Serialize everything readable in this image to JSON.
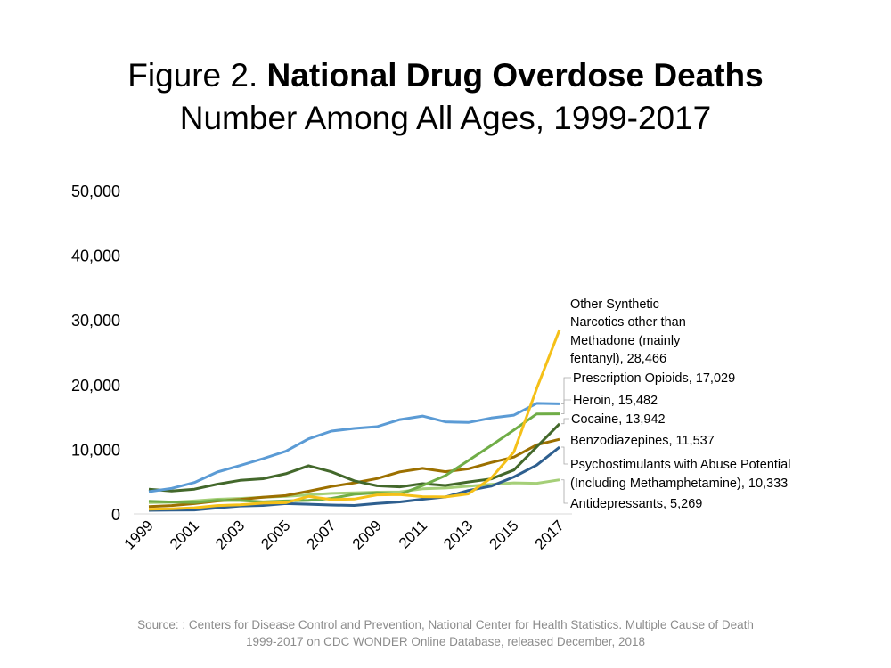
{
  "title": {
    "prefix": "Figure 2. ",
    "main": "National Drug Overdose Deaths",
    "subtitle": "Number Among All Ages, 1999-2017"
  },
  "source": {
    "line1": "Source: : Centers for Disease Control and Prevention, National Center for Health Statistics. Multiple Cause of Death",
    "line2": "1999-2017 on CDC WONDER Online Database, released December, 2018"
  },
  "chart_data": {
    "type": "line",
    "title": "National Drug Overdose Deaths",
    "subtitle": "Number Among All Ages, 1999-2017",
    "xlabel": "",
    "ylabel": "",
    "ylim": [
      0,
      50000
    ],
    "yticks": [
      "0",
      "10,000",
      "20,000",
      "30,000",
      "40,000",
      "50,000"
    ],
    "ytick_values": [
      0,
      10000,
      20000,
      30000,
      40000,
      50000
    ],
    "xticks": [
      "1999",
      "2001",
      "2003",
      "2005",
      "2007",
      "2009",
      "2011",
      "2013",
      "2015",
      "2017"
    ],
    "x": [
      1999,
      2000,
      2001,
      2002,
      2003,
      2004,
      2005,
      2006,
      2007,
      2008,
      2009,
      2010,
      2011,
      2012,
      2013,
      2014,
      2015,
      2016,
      2017
    ],
    "grid": false,
    "legend": "direct labels at right end of lines",
    "series": [
      {
        "name": "Other Synthetic Narcotics other than Methadone (mainly fentanyl), 28,466",
        "label_lines": [
          "Other Synthetic",
          "Narcotics other than",
          "Methadone (mainly",
          "fentanyl), 28,466"
        ],
        "color": "#f5c018",
        "values": [
          730,
          782,
          957,
          1295,
          1400,
          1664,
          1742,
          2707,
          2213,
          2306,
          2946,
          3007,
          2666,
          2628,
          3105,
          5544,
          9580,
          19413,
          28466
        ]
      },
      {
        "name": "Prescription Opioids, 17,029",
        "label_lines": [
          "Prescription Opioids, 17,029"
        ],
        "color": "#5b9bd5",
        "values": [
          3442,
          3950,
          4860,
          6470,
          7480,
          8540,
          9680,
          11610,
          12810,
          13220,
          13500,
          14580,
          15140,
          14240,
          14150,
          14840,
          15280,
          17087,
          17029
        ]
      },
      {
        "name": "Heroin, 15,482",
        "label_lines": [
          "Heroin, 15,482"
        ],
        "color": "#70ad47",
        "values": [
          1960,
          1842,
          1779,
          2089,
          2080,
          1878,
          2009,
          2088,
          2399,
          3041,
          3278,
          3036,
          4397,
          5925,
          8257,
          10574,
          12989,
          15469,
          15482
        ]
      },
      {
        "name": "Cocaine, 13,942",
        "label_lines": [
          "Cocaine, 13,942"
        ],
        "color": "#43682b",
        "values": [
          3822,
          3544,
          3833,
          4599,
          5199,
          5443,
          6208,
          7448,
          6512,
          5129,
          4350,
          4183,
          4681,
          4404,
          4944,
          5415,
          6784,
          10375,
          13942
        ]
      },
      {
        "name": "Benzodiazepines, 11,537",
        "label_lines": [
          "Benzodiazepines, 11,537"
        ],
        "color": "#9c7000",
        "values": [
          1135,
          1298,
          1594,
          2004,
          2248,
          2585,
          2834,
          3511,
          4248,
          4812,
          5465,
          6497,
          7040,
          6524,
          6973,
          7945,
          8791,
          10684,
          11537
        ]
      },
      {
        "name": "Psychostimulants with Abuse Potential (Including Methamphetamine), 10,333",
        "label_lines": [
          "Psychostimulants with Abuse Potential",
          "(Including Methamphetamine), 10,333"
        ],
        "color": "#2e5f8f",
        "values": [
          547,
          578,
          606,
          943,
          1224,
          1302,
          1591,
          1497,
          1378,
          1302,
          1632,
          1854,
          2266,
          2635,
          3627,
          4298,
          5716,
          7542,
          10333
        ]
      },
      {
        "name": "Antidepressants, 5,269",
        "label_lines": [
          "Antidepressants, 5,269"
        ],
        "color": "#a5cf78",
        "values": [
          1749,
          1804,
          2017,
          2274,
          2398,
          2590,
          2707,
          2952,
          3185,
          3275,
          3380,
          3420,
          3889,
          4007,
          4289,
          4568,
          4812,
          4732,
          5269
        ]
      }
    ]
  }
}
